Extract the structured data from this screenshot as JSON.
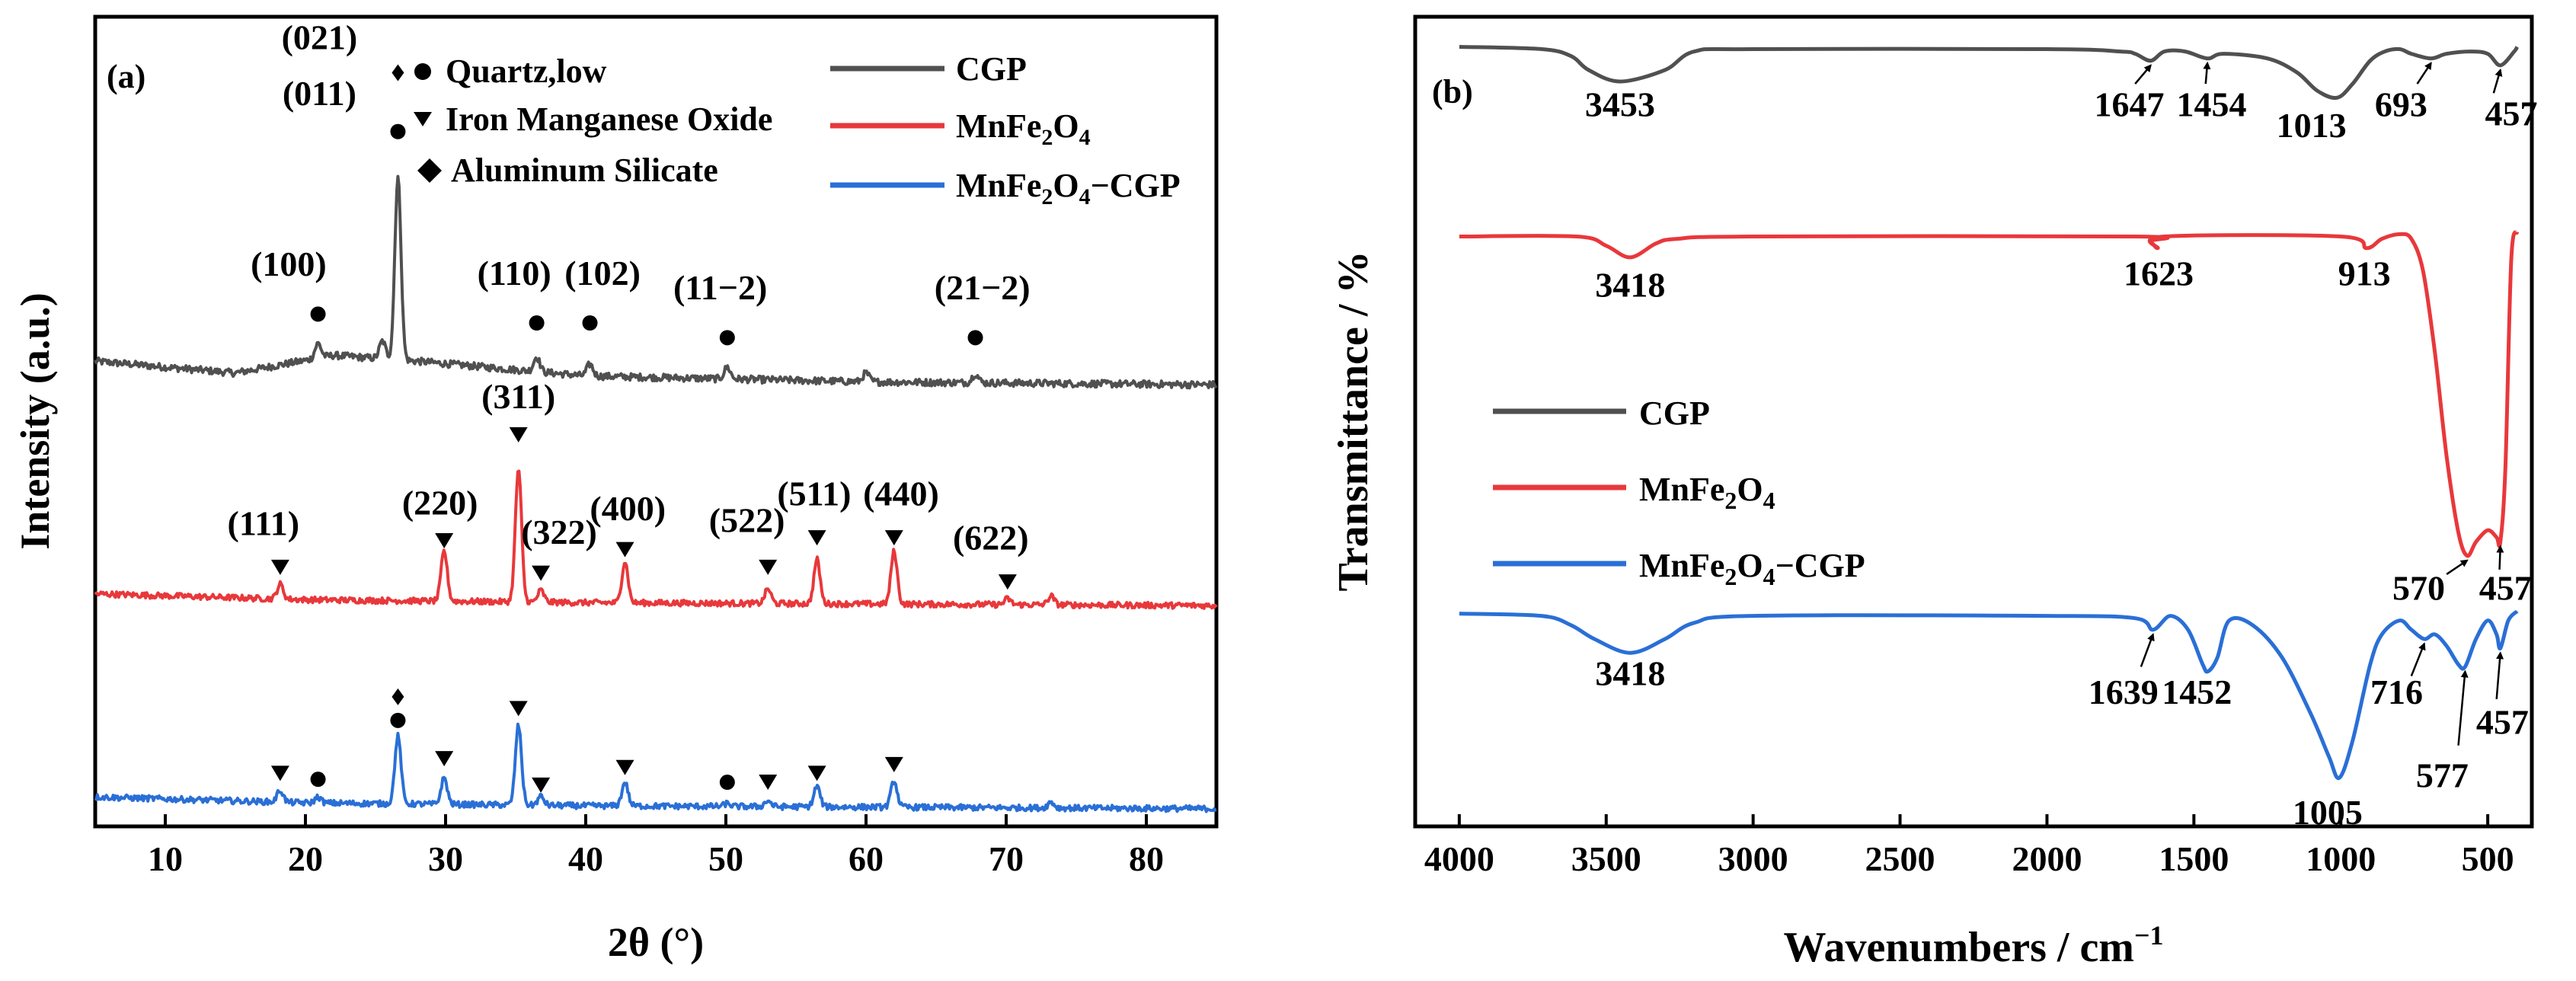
{
  "colors": {
    "cgp": "#505050",
    "mnfe2o4": "#e8383b",
    "composite": "#2a6fd6",
    "axis": "#000000",
    "marker": "#000000"
  },
  "chart_data": [
    {
      "type": "line",
      "panel_label": "(a)",
      "xlabel": "2θ (°)",
      "ylabel": "Intensity (a.u.)",
      "xlim": [
        5,
        85
      ],
      "xticks": [
        10,
        20,
        30,
        40,
        50,
        60,
        70,
        80
      ],
      "legend": [
        "CGP",
        "MnFe2O4",
        "MnFe2O4−CGP"
      ],
      "phase_legend": [
        {
          "symbol": "●",
          "label": "Quartz,low"
        },
        {
          "symbol": "▼",
          "label": "Iron Manganese Oxide"
        },
        {
          "symbol": "◆",
          "label": "Aluminum Silicate"
        }
      ],
      "series": [
        {
          "name": "CGP",
          "baseline": [
            [
              5,
              1.58
            ],
            [
              15,
              1.54
            ],
            [
              22,
              1.6
            ],
            [
              28,
              1.58
            ],
            [
              40,
              1.53
            ],
            [
              60,
              1.51
            ],
            [
              85,
              1.5
            ]
          ],
          "peaks": [
            [
              20.9,
              0.05
            ],
            [
              25.5,
              0.06
            ],
            [
              26.6,
              0.62
            ],
            [
              36.5,
              0.05
            ],
            [
              40.3,
              0.04
            ],
            [
              50.1,
              0.04
            ],
            [
              60.0,
              0.03
            ],
            [
              67.8,
              0.03
            ]
          ],
          "noise": 0.012
        },
        {
          "name": "MnFe2O4",
          "baseline": [
            [
              5,
              0.79
            ],
            [
              20,
              0.77
            ],
            [
              40,
              0.76
            ],
            [
              85,
              0.75
            ]
          ],
          "peaks": [
            [
              18.2,
              0.05
            ],
            [
              29.9,
              0.17
            ],
            [
              35.2,
              0.45
            ],
            [
              36.8,
              0.04
            ],
            [
              42.8,
              0.14
            ],
            [
              53.0,
              0.05
            ],
            [
              56.5,
              0.15
            ],
            [
              62.0,
              0.18
            ],
            [
              70.1,
              0.02
            ],
            [
              73.2,
              0.03
            ]
          ],
          "noise": 0.01
        },
        {
          "name": "MnFe2O4−CGP",
          "baseline": [
            [
              5,
              0.1
            ],
            [
              20,
              0.08
            ],
            [
              40,
              0.07
            ],
            [
              85,
              0.06
            ]
          ],
          "peaks": [
            [
              18.2,
              0.04
            ],
            [
              20.9,
              0.02
            ],
            [
              26.6,
              0.23
            ],
            [
              29.9,
              0.09
            ],
            [
              35.2,
              0.27
            ],
            [
              36.8,
              0.03
            ],
            [
              42.8,
              0.08
            ],
            [
              50.1,
              0.01
            ],
            [
              53.0,
              0.02
            ],
            [
              56.5,
              0.07
            ],
            [
              62.0,
              0.09
            ],
            [
              73.2,
              0.02
            ]
          ],
          "noise": 0.01
        }
      ],
      "annotations": [
        {
          "text": "(100)",
          "x": 18.8,
          "y": 1.87
        },
        {
          "text": "(011)",
          "x": 21.0,
          "y": 2.45
        },
        {
          "text": "(021)",
          "x": 21.0,
          "y": 2.64
        },
        {
          "text": "(110)",
          "x": 34.9,
          "y": 1.84
        },
        {
          "text": "(102)",
          "x": 41.2,
          "y": 1.84
        },
        {
          "text": "(11−2)",
          "x": 49.6,
          "y": 1.79
        },
        {
          "text": "(21−2)",
          "x": 68.3,
          "y": 1.79
        },
        {
          "text": "(311)",
          "x": 35.2,
          "y": 1.42
        },
        {
          "text": "(111)",
          "x": 17.0,
          "y": 0.99
        },
        {
          "text": "(220)",
          "x": 29.6,
          "y": 1.06
        },
        {
          "text": "(322)",
          "x": 38.1,
          "y": 0.96
        },
        {
          "text": "(400)",
          "x": 43.0,
          "y": 1.04
        },
        {
          "text": "(522)",
          "x": 51.5,
          "y": 1.0
        },
        {
          "text": "(511)",
          "x": 56.3,
          "y": 1.09
        },
        {
          "text": "(440)",
          "x": 62.5,
          "y": 1.09
        },
        {
          "text": "(622)",
          "x": 68.9,
          "y": 0.94
        }
      ],
      "markers": [
        {
          "symbol": "●",
          "x": 20.9,
          "y": 1.74
        },
        {
          "symbol": "●",
          "x": 26.6,
          "y": 2.36
        },
        {
          "symbol": "◆",
          "x": 26.6,
          "y": 2.56
        },
        {
          "symbol": "●",
          "x": 36.5,
          "y": 1.71
        },
        {
          "symbol": "●",
          "x": 40.3,
          "y": 1.71
        },
        {
          "symbol": "●",
          "x": 50.1,
          "y": 1.66
        },
        {
          "symbol": "●",
          "x": 67.8,
          "y": 1.66
        },
        {
          "symbol": "▼",
          "x": 35.2,
          "y": 1.33
        },
        {
          "symbol": "▼",
          "x": 18.2,
          "y": 0.88
        },
        {
          "symbol": "▼",
          "x": 29.9,
          "y": 0.97
        },
        {
          "symbol": "▼",
          "x": 36.8,
          "y": 0.86
        },
        {
          "symbol": "▼",
          "x": 42.8,
          "y": 0.94
        },
        {
          "symbol": "▼",
          "x": 53.0,
          "y": 0.88
        },
        {
          "symbol": "▼",
          "x": 56.5,
          "y": 0.98
        },
        {
          "symbol": "▼",
          "x": 62.0,
          "y": 0.98
        },
        {
          "symbol": "▼",
          "x": 70.1,
          "y": 0.83
        },
        {
          "symbol": "◆",
          "x": 26.6,
          "y": 0.44
        },
        {
          "symbol": "●",
          "x": 26.6,
          "y": 0.36
        },
        {
          "symbol": "▼",
          "x": 18.2,
          "y": 0.18
        },
        {
          "symbol": "●",
          "x": 20.9,
          "y": 0.16
        },
        {
          "symbol": "▼",
          "x": 29.9,
          "y": 0.23
        },
        {
          "symbol": "▼",
          "x": 35.2,
          "y": 0.4
        },
        {
          "symbol": "▼",
          "x": 36.8,
          "y": 0.14
        },
        {
          "symbol": "▼",
          "x": 42.8,
          "y": 0.2
        },
        {
          "symbol": "●",
          "x": 50.1,
          "y": 0.15
        },
        {
          "symbol": "▼",
          "x": 53.0,
          "y": 0.15
        },
        {
          "symbol": "▼",
          "x": 56.5,
          "y": 0.18
        },
        {
          "symbol": "▼",
          "x": 62.0,
          "y": 0.21
        }
      ],
      "ylim": [
        0,
        2.75
      ]
    },
    {
      "type": "line",
      "panel_label": "(b)",
      "xlabel": "Wavenumbers / cm−1",
      "ylabel": "Transmittance / %",
      "xlim": [
        4150,
        350
      ],
      "xticks": [
        4000,
        3500,
        3000,
        2500,
        2000,
        1500,
        1000,
        500
      ],
      "legend": [
        "CGP",
        "MnFe2O4",
        "MnFe2O4−CGP"
      ],
      "series": [
        {
          "name": "CGP",
          "points": [
            [
              4000,
              2.72
            ],
            [
              3720,
              2.71
            ],
            [
              3620,
              2.68
            ],
            [
              3560,
              2.62
            ],
            [
              3453,
              2.57
            ],
            [
              3300,
              2.62
            ],
            [
              3200,
              2.7
            ],
            [
              3000,
              2.71
            ],
            [
              2000,
              2.71
            ],
            [
              1750,
              2.7
            ],
            [
              1700,
              2.69
            ],
            [
              1647,
              2.66
            ],
            [
              1600,
              2.7
            ],
            [
              1530,
              2.7
            ],
            [
              1454,
              2.67
            ],
            [
              1400,
              2.69
            ],
            [
              1250,
              2.67
            ],
            [
              1150,
              2.61
            ],
            [
              1080,
              2.53
            ],
            [
              1013,
              2.5
            ],
            [
              960,
              2.56
            ],
            [
              900,
              2.66
            ],
            [
              850,
              2.7
            ],
            [
              800,
              2.71
            ],
            [
              760,
              2.69
            ],
            [
              693,
              2.67
            ],
            [
              640,
              2.69
            ],
            [
              560,
              2.7
            ],
            [
              500,
              2.69
            ],
            [
              457,
              2.64
            ],
            [
              410,
              2.7
            ],
            [
              400,
              2.72
            ]
          ]
        },
        {
          "name": "MnFe2O4",
          "points": [
            [
              4000,
              1.9
            ],
            [
              3600,
              1.9
            ],
            [
              3500,
              1.86
            ],
            [
              3418,
              1.81
            ],
            [
              3330,
              1.87
            ],
            [
              3260,
              1.89
            ],
            [
              3000,
              1.9
            ],
            [
              1700,
              1.9
            ],
            [
              1650,
              1.88
            ],
            [
              1623,
              1.85
            ],
            [
              1600,
              1.9
            ],
            [
              1000,
              1.9
            ],
            [
              913,
              1.85
            ],
            [
              860,
              1.89
            ],
            [
              800,
              1.91
            ],
            [
              760,
              1.89
            ],
            [
              720,
              1.75
            ],
            [
              680,
              1.4
            ],
            [
              640,
              0.95
            ],
            [
              600,
              0.62
            ],
            [
              570,
              0.52
            ],
            [
              540,
              0.58
            ],
            [
              500,
              0.63
            ],
            [
              470,
              0.6
            ],
            [
              457,
              0.58
            ],
            [
              440,
              0.9
            ],
            [
              420,
              1.8
            ],
            [
              400,
              1.92
            ]
          ]
        },
        {
          "name": "MnFe2O4−CGP",
          "points": [
            [
              4000,
              0.27
            ],
            [
              3720,
              0.26
            ],
            [
              3620,
              0.22
            ],
            [
              3540,
              0.16
            ],
            [
              3418,
              0.1
            ],
            [
              3300,
              0.16
            ],
            [
              3200,
              0.23
            ],
            [
              3000,
              0.26
            ],
            [
              2000,
              0.26
            ],
            [
              1700,
              0.25
            ],
            [
              1639,
              0.2
            ],
            [
              1580,
              0.26
            ],
            [
              1520,
              0.2
            ],
            [
              1470,
              0.05
            ],
            [
              1452,
              0.02
            ],
            [
              1420,
              0.08
            ],
            [
              1380,
              0.24
            ],
            [
              1300,
              0.22
            ],
            [
              1200,
              0.08
            ],
            [
              1100,
              -0.17
            ],
            [
              1040,
              -0.35
            ],
            [
              1005,
              -0.44
            ],
            [
              960,
              -0.28
            ],
            [
              900,
              0.05
            ],
            [
              860,
              0.18
            ],
            [
              800,
              0.24
            ],
            [
              760,
              0.2
            ],
            [
              716,
              0.16
            ],
            [
              680,
              0.18
            ],
            [
              640,
              0.13
            ],
            [
              600,
              0.05
            ],
            [
              577,
              0.04
            ],
            [
              540,
              0.16
            ],
            [
              500,
              0.24
            ],
            [
              470,
              0.18
            ],
            [
              457,
              0.12
            ],
            [
              430,
              0.24
            ],
            [
              400,
              0.28
            ]
          ]
        }
      ],
      "annotations": [
        {
          "text": "3453",
          "x": 3453,
          "y": 2.42
        },
        {
          "text": "1647",
          "x": 1720,
          "y": 2.42
        },
        {
          "text": "1454",
          "x": 1440,
          "y": 2.42
        },
        {
          "text": "1013",
          "x": 1100,
          "y": 2.33
        },
        {
          "text": "693",
          "x": 795,
          "y": 2.42
        },
        {
          "text": "457",
          "x": 420,
          "y": 2.38
        },
        {
          "text": "3418",
          "x": 3418,
          "y": 1.64
        },
        {
          "text": "1623",
          "x": 1620,
          "y": 1.69
        },
        {
          "text": "913",
          "x": 920,
          "y": 1.69
        },
        {
          "text": "570",
          "x": 735,
          "y": 0.33
        },
        {
          "text": "457",
          "x": 440,
          "y": 0.33
        },
        {
          "text": "3418",
          "x": 3418,
          "y": -0.04
        },
        {
          "text": "1639",
          "x": 1740,
          "y": -0.12
        },
        {
          "text": "1452",
          "x": 1490,
          "y": -0.12
        },
        {
          "text": "1005",
          "x": 1045,
          "y": -0.64
        },
        {
          "text": "716",
          "x": 810,
          "y": -0.12
        },
        {
          "text": "577",
          "x": 655,
          "y": -0.48
        },
        {
          "text": "457",
          "x": 450,
          "y": -0.25
        }
      ],
      "arrows": [
        {
          "x1": 1700,
          "y1": 2.56,
          "x2": 1647,
          "y2": 2.64
        },
        {
          "x1": 1460,
          "y1": 2.56,
          "x2": 1454,
          "y2": 2.65
        },
        {
          "x1": 740,
          "y1": 2.56,
          "x2": 693,
          "y2": 2.65
        },
        {
          "x1": 480,
          "y1": 2.52,
          "x2": 457,
          "y2": 2.62
        },
        {
          "x1": 640,
          "y1": 0.44,
          "x2": 570,
          "y2": 0.5
        },
        {
          "x1": 460,
          "y1": 0.46,
          "x2": 457,
          "y2": 0.56
        },
        {
          "x1": 1680,
          "y1": 0.04,
          "x2": 1639,
          "y2": 0.18
        },
        {
          "x1": 760,
          "y1": 0.0,
          "x2": 716,
          "y2": 0.14
        },
        {
          "x1": 600,
          "y1": -0.3,
          "x2": 577,
          "y2": 0.02
        },
        {
          "x1": 470,
          "y1": -0.1,
          "x2": 457,
          "y2": 0.1
        }
      ],
      "ylim": [
        -0.65,
        2.85
      ]
    }
  ]
}
